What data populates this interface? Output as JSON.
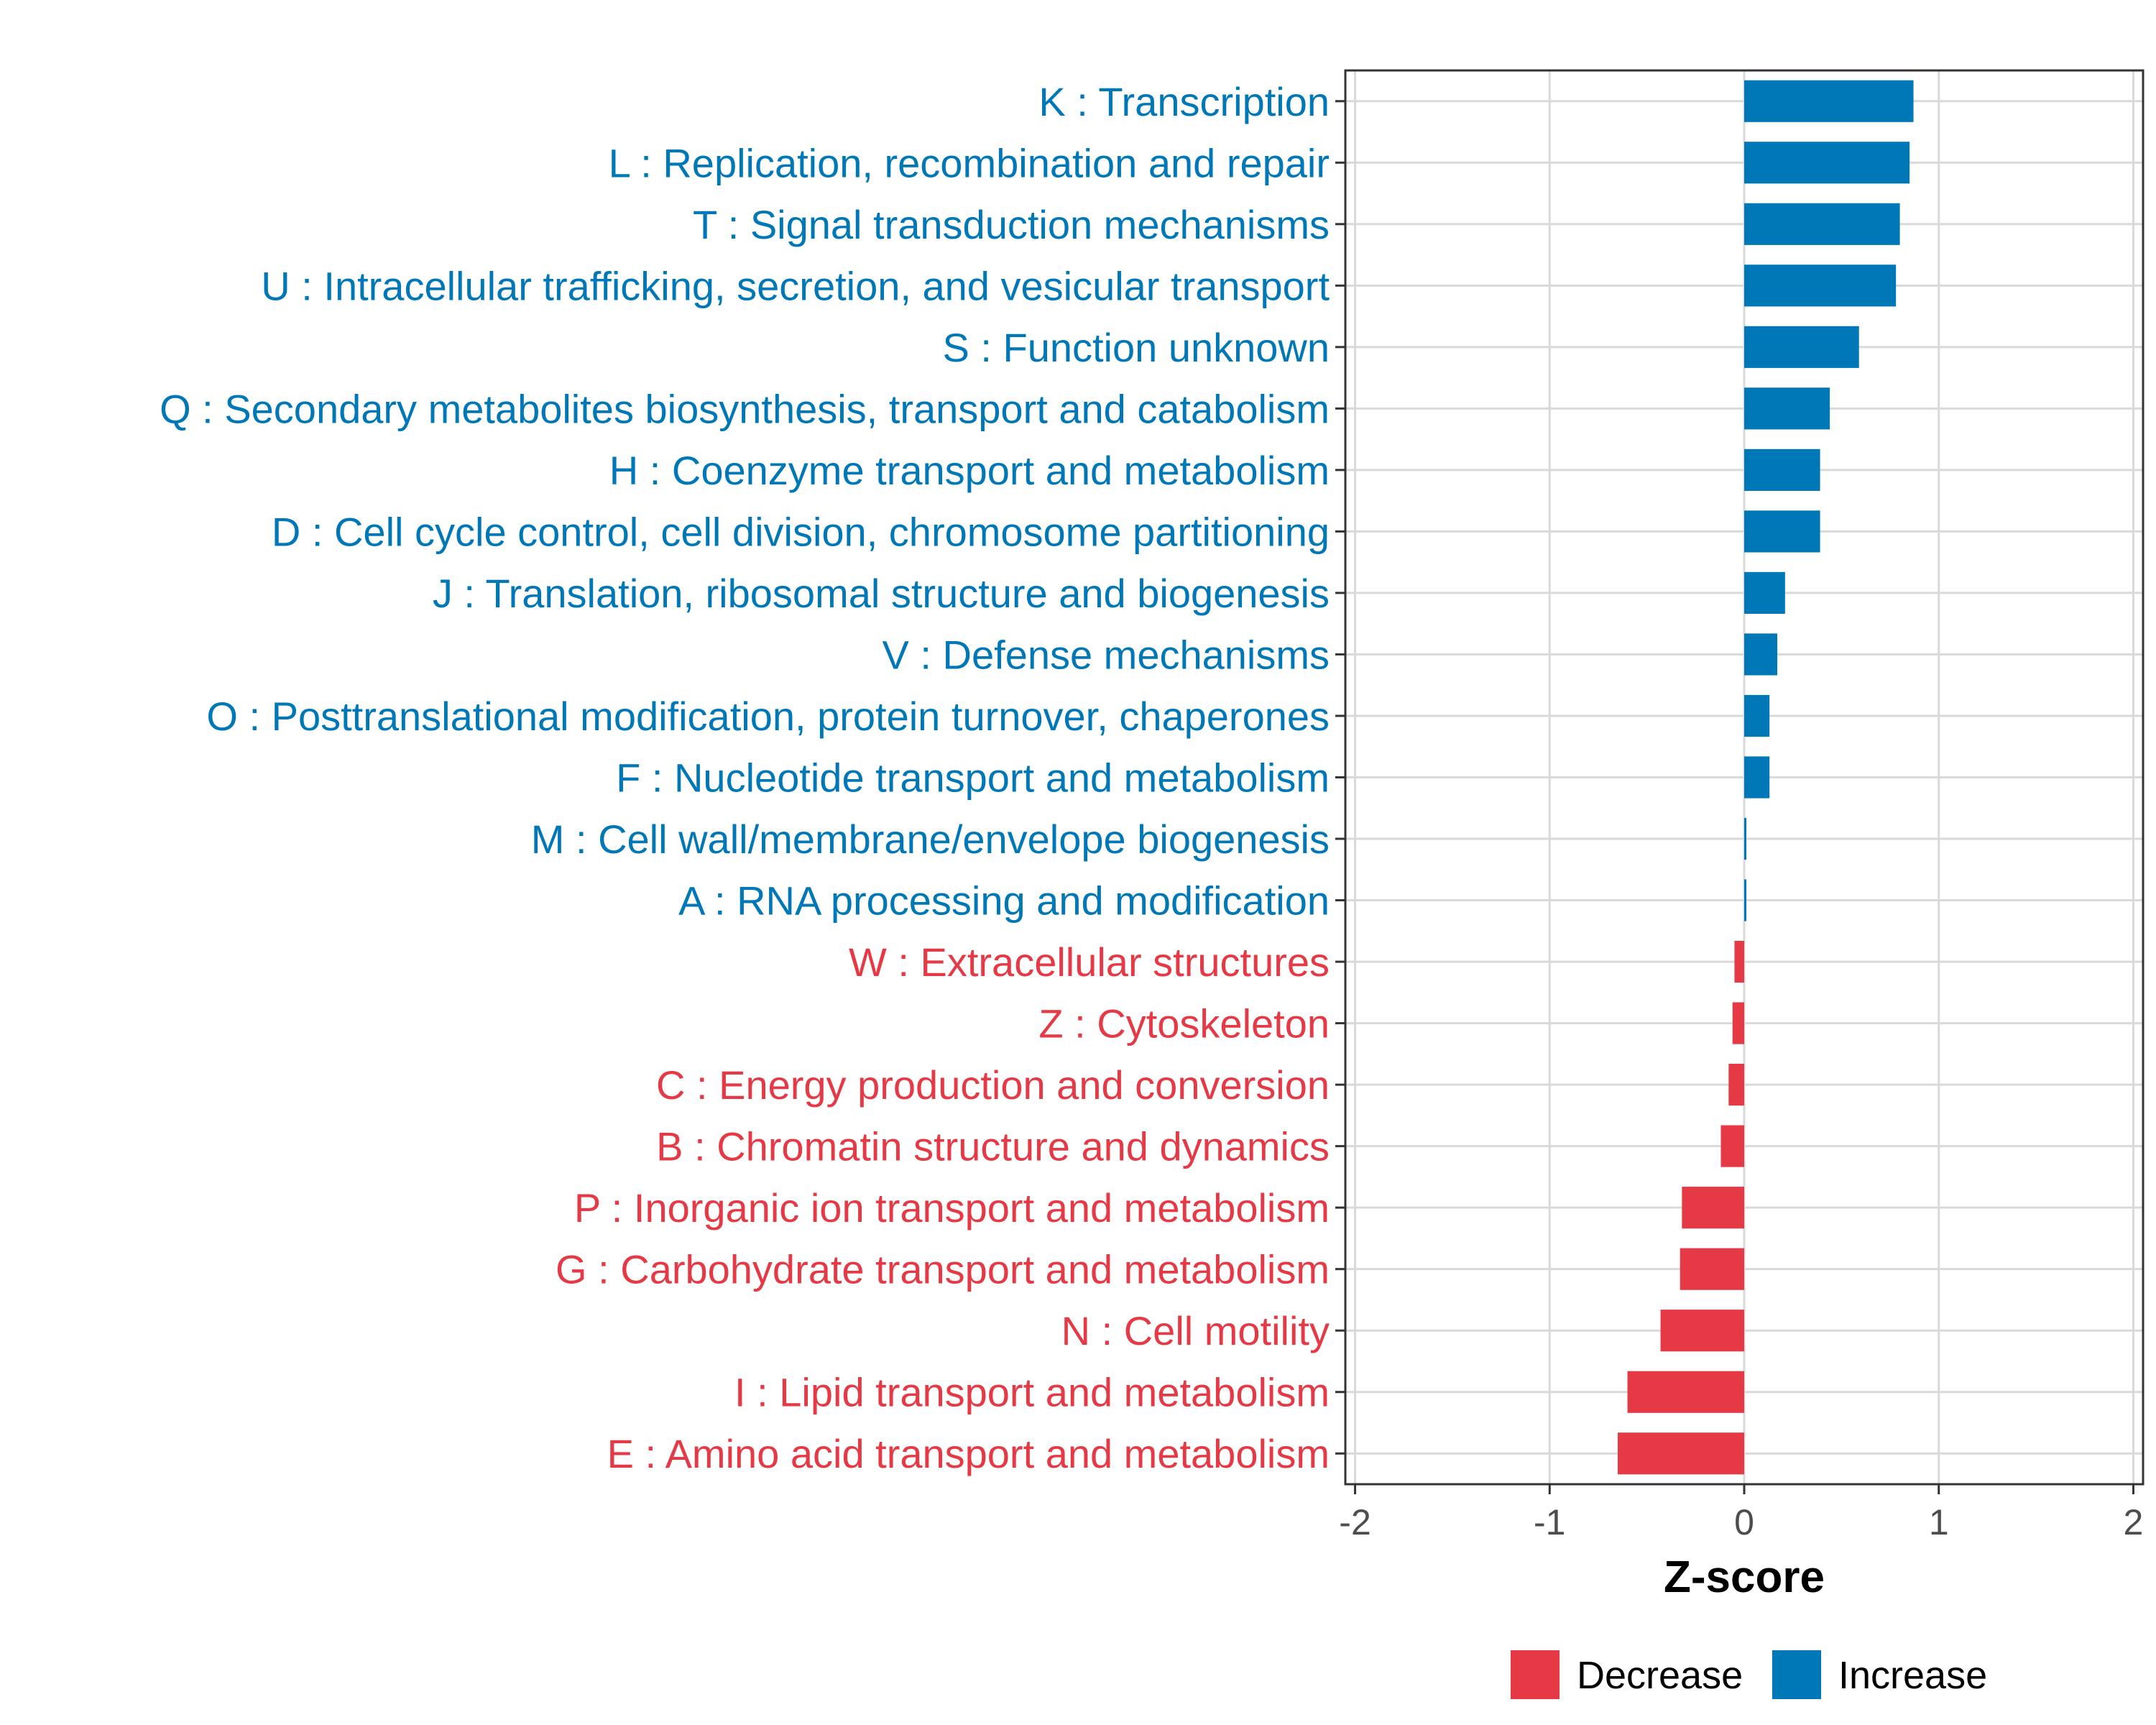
{
  "chart_data": {
    "type": "bar",
    "orientation": "horizontal",
    "title": "",
    "xlabel": "Z-score",
    "ylabel": "",
    "xlim": [
      -2.05,
      2.05
    ],
    "x_ticks": [
      -2,
      -1,
      0,
      1,
      2
    ],
    "x_tick_labels": [
      "-2",
      "-1",
      "0",
      "1",
      "2"
    ],
    "grid": true,
    "legend_position": "bottom",
    "categories": [
      "K : Transcription",
      "L : Replication, recombination and repair",
      "T : Signal transduction mechanisms",
      "U : Intracellular trafficking, secretion, and vesicular transport",
      "S : Function unknown",
      "Q : Secondary metabolites biosynthesis, transport and catabolism",
      "H : Coenzyme transport and metabolism",
      "D : Cell cycle control, cell division, chromosome partitioning",
      "J : Translation, ribosomal structure and biogenesis",
      "V : Defense mechanisms",
      "O : Posttranslational modification, protein turnover, chaperones",
      "F : Nucleotide transport and metabolism",
      "M : Cell wall/membrane/envelope biogenesis",
      "A : RNA processing and modification",
      "W : Extracellular structures",
      "Z : Cytoskeleton",
      "C : Energy production and conversion",
      "B : Chromatin structure and dynamics",
      "P : Inorganic ion transport and metabolism",
      "G : Carbohydrate transport and metabolism",
      "N : Cell motility",
      "I : Lipid transport and metabolism",
      "E : Amino acid transport and metabolism"
    ],
    "values": [
      0.87,
      0.85,
      0.8,
      0.78,
      0.59,
      0.44,
      0.39,
      0.39,
      0.21,
      0.17,
      0.13,
      0.13,
      0.01,
      0.01,
      -0.05,
      -0.06,
      -0.08,
      -0.12,
      -0.32,
      -0.33,
      -0.43,
      -0.6,
      -0.65
    ],
    "legend": [
      {
        "name": "Decrease",
        "color": "#e63946"
      },
      {
        "name": "Increase",
        "color": "#0077b6"
      }
    ]
  },
  "colors": {
    "decrease": "#e63946",
    "increase": "#0077b6",
    "grid": "#d9d9d9",
    "frame": "#333333"
  }
}
